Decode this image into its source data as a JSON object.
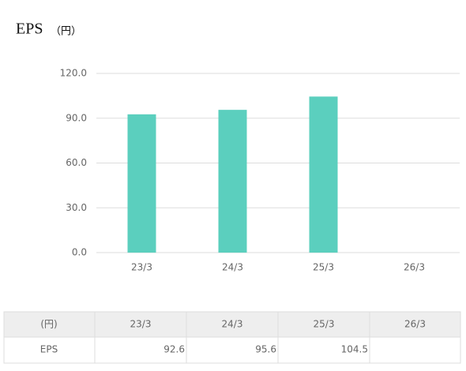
{
  "chart_data": {
    "type": "bar",
    "title": "EPS",
    "title_unit": "（円）",
    "categories": [
      "23/3",
      "24/3",
      "25/3",
      "26/3"
    ],
    "values": [
      92.6,
      95.6,
      104.5,
      null
    ],
    "color": "#5bcfbe",
    "ylim": [
      0,
      120
    ],
    "yticks": [
      {
        "value": 0,
        "label": "0.0"
      },
      {
        "value": 30,
        "label": "30.0"
      },
      {
        "value": 60,
        "label": "60.0"
      },
      {
        "value": 90,
        "label": "90.0"
      },
      {
        "value": 120,
        "label": "120.0"
      }
    ],
    "grid": true
  },
  "table": {
    "unit_header": "(円)",
    "row_label": "EPS"
  }
}
